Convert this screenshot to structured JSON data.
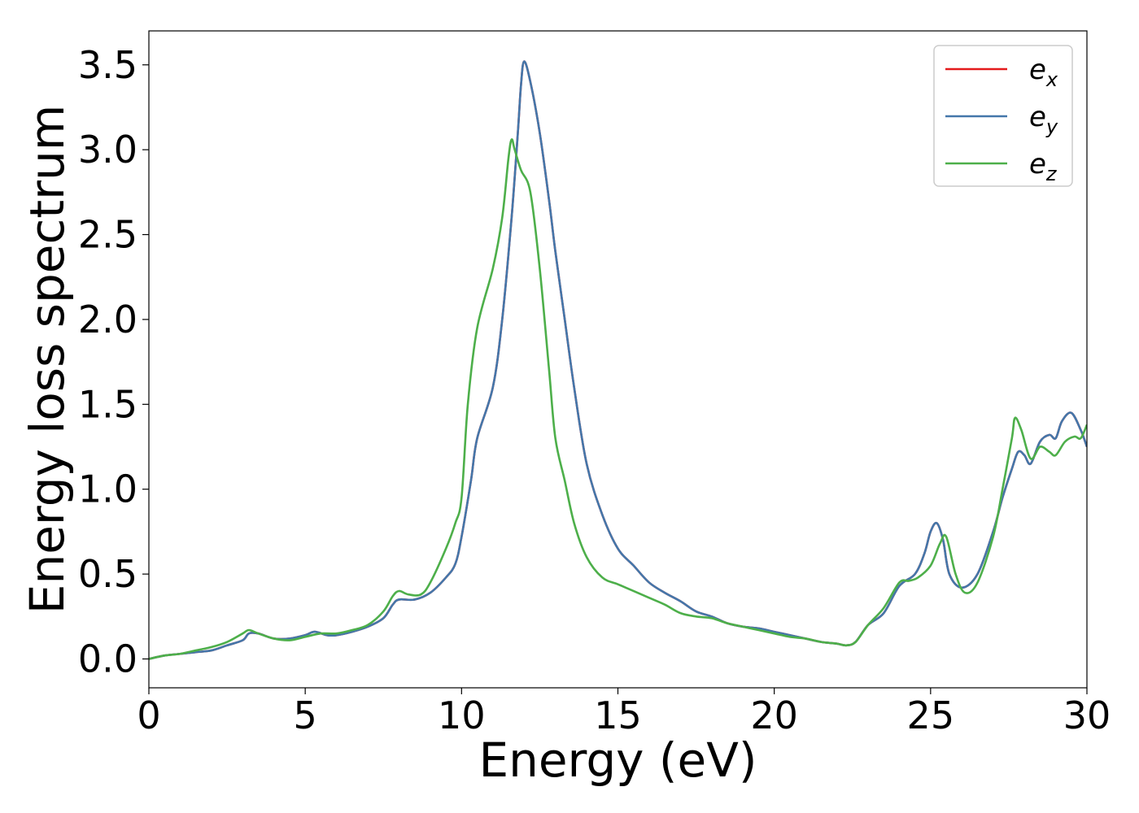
{
  "chart_data": {
    "type": "line",
    "title": "",
    "xlabel": "Energy (eV)",
    "ylabel": "Energy loss spectrum",
    "xlim": [
      0,
      30
    ],
    "ylim": [
      -0.17,
      3.7
    ],
    "xticks": [
      0,
      5,
      10,
      15,
      20,
      25,
      30
    ],
    "yticks": [
      0.0,
      0.5,
      1.0,
      1.5,
      2.0,
      2.5,
      3.0,
      3.5
    ],
    "xtick_labels": [
      "0",
      "5",
      "10",
      "15",
      "20",
      "25",
      "30"
    ],
    "ytick_labels": [
      "0.0",
      "0.5",
      "1.0",
      "1.5",
      "2.0",
      "2.5",
      "3.0",
      "3.5"
    ],
    "grid": false,
    "legend_position": "top-right",
    "series": [
      {
        "name": "e_x",
        "label_base": "e",
        "label_sub": "x",
        "color": "#e41a1c",
        "x": [
          0,
          0.5,
          1,
          1.5,
          2,
          2.5,
          3,
          3.2,
          3.5,
          4,
          4.5,
          5,
          5.3,
          5.7,
          6,
          6.5,
          7,
          7.5,
          7.8,
          8,
          8.5,
          9,
          9.5,
          9.8,
          10,
          10.3,
          10.5,
          11,
          11.3,
          11.6,
          11.8,
          11.9,
          12,
          12.2,
          12.5,
          12.8,
          13,
          13.3,
          13.6,
          14,
          14.5,
          15,
          15.5,
          16,
          16.5,
          17,
          17.5,
          18,
          18.5,
          19,
          19.5,
          20,
          20.5,
          21,
          21.5,
          22,
          22.3,
          22.6,
          23,
          23.5,
          24,
          24.5,
          24.8,
          25,
          25.2,
          25.4,
          25.6,
          26,
          26.5,
          27,
          27.3,
          27.6,
          27.8,
          28,
          28.2,
          28.5,
          28.8,
          29,
          29.2,
          29.5,
          29.8,
          30
        ],
        "values": [
          0,
          0.02,
          0.03,
          0.04,
          0.05,
          0.08,
          0.11,
          0.15,
          0.15,
          0.12,
          0.12,
          0.14,
          0.16,
          0.14,
          0.14,
          0.16,
          0.19,
          0.24,
          0.32,
          0.35,
          0.35,
          0.39,
          0.48,
          0.56,
          0.72,
          1.05,
          1.3,
          1.6,
          2.0,
          2.6,
          3.1,
          3.38,
          3.52,
          3.4,
          3.1,
          2.7,
          2.4,
          2.0,
          1.6,
          1.15,
          0.85,
          0.65,
          0.55,
          0.45,
          0.39,
          0.34,
          0.28,
          0.25,
          0.21,
          0.19,
          0.18,
          0.16,
          0.14,
          0.12,
          0.1,
          0.09,
          0.08,
          0.1,
          0.2,
          0.27,
          0.43,
          0.5,
          0.62,
          0.75,
          0.8,
          0.7,
          0.5,
          0.42,
          0.5,
          0.75,
          0.95,
          1.12,
          1.22,
          1.2,
          1.15,
          1.28,
          1.32,
          1.3,
          1.4,
          1.45,
          1.35,
          1.25
        ]
      },
      {
        "name": "e_y",
        "label_base": "e",
        "label_sub": "y",
        "color": "#4477aa",
        "x": [
          0,
          0.5,
          1,
          1.5,
          2,
          2.5,
          3,
          3.2,
          3.5,
          4,
          4.5,
          5,
          5.3,
          5.7,
          6,
          6.5,
          7,
          7.5,
          7.8,
          8,
          8.5,
          9,
          9.5,
          9.8,
          10,
          10.3,
          10.5,
          11,
          11.3,
          11.6,
          11.8,
          11.9,
          12,
          12.2,
          12.5,
          12.8,
          13,
          13.3,
          13.6,
          14,
          14.5,
          15,
          15.5,
          16,
          16.5,
          17,
          17.5,
          18,
          18.5,
          19,
          19.5,
          20,
          20.5,
          21,
          21.5,
          22,
          22.3,
          22.6,
          23,
          23.5,
          24,
          24.5,
          24.8,
          25,
          25.2,
          25.4,
          25.6,
          26,
          26.5,
          27,
          27.3,
          27.6,
          27.8,
          28,
          28.2,
          28.5,
          28.8,
          29,
          29.2,
          29.5,
          29.8,
          30
        ],
        "values": [
          0,
          0.02,
          0.03,
          0.04,
          0.05,
          0.08,
          0.11,
          0.15,
          0.15,
          0.12,
          0.12,
          0.14,
          0.16,
          0.14,
          0.14,
          0.16,
          0.19,
          0.24,
          0.32,
          0.35,
          0.35,
          0.39,
          0.48,
          0.56,
          0.72,
          1.05,
          1.3,
          1.6,
          2.0,
          2.6,
          3.1,
          3.38,
          3.52,
          3.4,
          3.1,
          2.7,
          2.4,
          2.0,
          1.6,
          1.15,
          0.85,
          0.65,
          0.55,
          0.45,
          0.39,
          0.34,
          0.28,
          0.25,
          0.21,
          0.19,
          0.18,
          0.16,
          0.14,
          0.12,
          0.1,
          0.09,
          0.08,
          0.1,
          0.2,
          0.27,
          0.43,
          0.5,
          0.62,
          0.75,
          0.8,
          0.7,
          0.5,
          0.42,
          0.5,
          0.75,
          0.95,
          1.12,
          1.22,
          1.2,
          1.15,
          1.28,
          1.32,
          1.3,
          1.4,
          1.45,
          1.35,
          1.25
        ]
      },
      {
        "name": "e_z",
        "label_base": "e",
        "label_sub": "z",
        "color": "#4daf4a",
        "x": [
          0,
          0.5,
          1,
          1.5,
          2,
          2.5,
          3,
          3.2,
          3.5,
          4,
          4.5,
          5,
          5.5,
          6,
          6.5,
          7,
          7.5,
          7.8,
          8,
          8.3,
          8.7,
          9,
          9.5,
          9.8,
          10,
          10.2,
          10.5,
          11,
          11.3,
          11.5,
          11.6,
          11.7,
          11.9,
          12.2,
          12.5,
          12.8,
          13,
          13.3,
          13.6,
          14,
          14.5,
          15,
          15.5,
          16,
          16.5,
          17,
          17.5,
          18,
          18.5,
          19,
          19.5,
          20,
          20.5,
          21,
          21.5,
          22,
          22.3,
          22.6,
          23,
          23.5,
          24,
          24.3,
          24.6,
          25,
          25.3,
          25.5,
          25.8,
          26.1,
          26.5,
          27,
          27.3,
          27.6,
          27.7,
          27.9,
          28.2,
          28.5,
          28.8,
          29,
          29.3,
          29.6,
          29.8,
          30
        ],
        "values": [
          0,
          0.02,
          0.03,
          0.05,
          0.07,
          0.1,
          0.15,
          0.17,
          0.15,
          0.12,
          0.11,
          0.13,
          0.15,
          0.15,
          0.17,
          0.2,
          0.28,
          0.37,
          0.4,
          0.38,
          0.38,
          0.45,
          0.65,
          0.8,
          0.95,
          1.5,
          1.95,
          2.3,
          2.6,
          2.95,
          3.06,
          3.0,
          2.88,
          2.75,
          2.3,
          1.7,
          1.3,
          1.05,
          0.8,
          0.6,
          0.48,
          0.44,
          0.4,
          0.36,
          0.32,
          0.27,
          0.25,
          0.24,
          0.21,
          0.19,
          0.17,
          0.15,
          0.13,
          0.12,
          0.1,
          0.09,
          0.08,
          0.1,
          0.2,
          0.3,
          0.45,
          0.46,
          0.48,
          0.55,
          0.68,
          0.72,
          0.5,
          0.39,
          0.45,
          0.72,
          1.0,
          1.3,
          1.42,
          1.35,
          1.18,
          1.25,
          1.22,
          1.2,
          1.28,
          1.31,
          1.3,
          1.38
        ]
      }
    ]
  }
}
